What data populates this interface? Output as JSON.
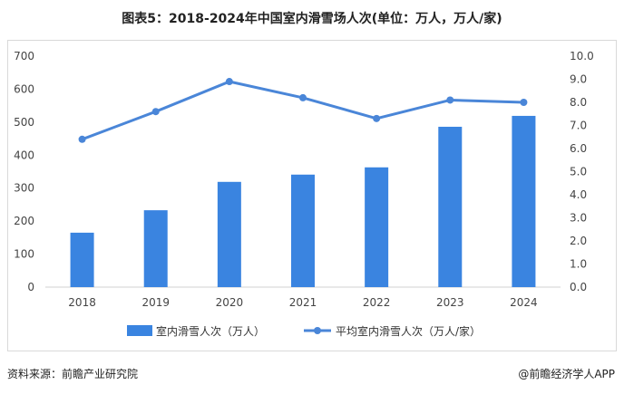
{
  "title": "图表5：2018-2024年中国室内滑雪场人次(单位：万人，万人/家)",
  "chart_data": {
    "type": "bar+line",
    "title": "图表5：2018-2024年中国室内滑雪场人次(单位：万人，万人/家)",
    "categories": [
      "2018",
      "2019",
      "2020",
      "2021",
      "2022",
      "2023",
      "2024"
    ],
    "series": [
      {
        "name": "室内滑雪人次（万人）",
        "type": "bar",
        "axis": "left",
        "values": [
          165,
          233,
          319,
          341,
          363,
          486,
          519
        ],
        "color": "#3a84e0"
      },
      {
        "name": "平均室内滑雪人次（万人/家）",
        "type": "line",
        "axis": "right",
        "values": [
          6.4,
          7.6,
          8.9,
          8.2,
          7.3,
          8.1,
          8.0
        ],
        "color": "#4a86d8"
      }
    ],
    "left_axis": {
      "ylim": [
        0,
        700
      ],
      "ticks": [
        "0",
        "100",
        "200",
        "300",
        "400",
        "500",
        "600",
        "700"
      ]
    },
    "right_axis": {
      "ylim": [
        0,
        10
      ],
      "ticks": [
        "0.0",
        "1.0",
        "2.0",
        "3.0",
        "4.0",
        "5.0",
        "6.0",
        "7.0",
        "8.0",
        "9.0",
        "10.0"
      ]
    },
    "grid": false,
    "legend": "bottom"
  },
  "footer": {
    "source": "资料来源：前瞻产业研究院",
    "brand": "@前瞻经济学人APP"
  }
}
